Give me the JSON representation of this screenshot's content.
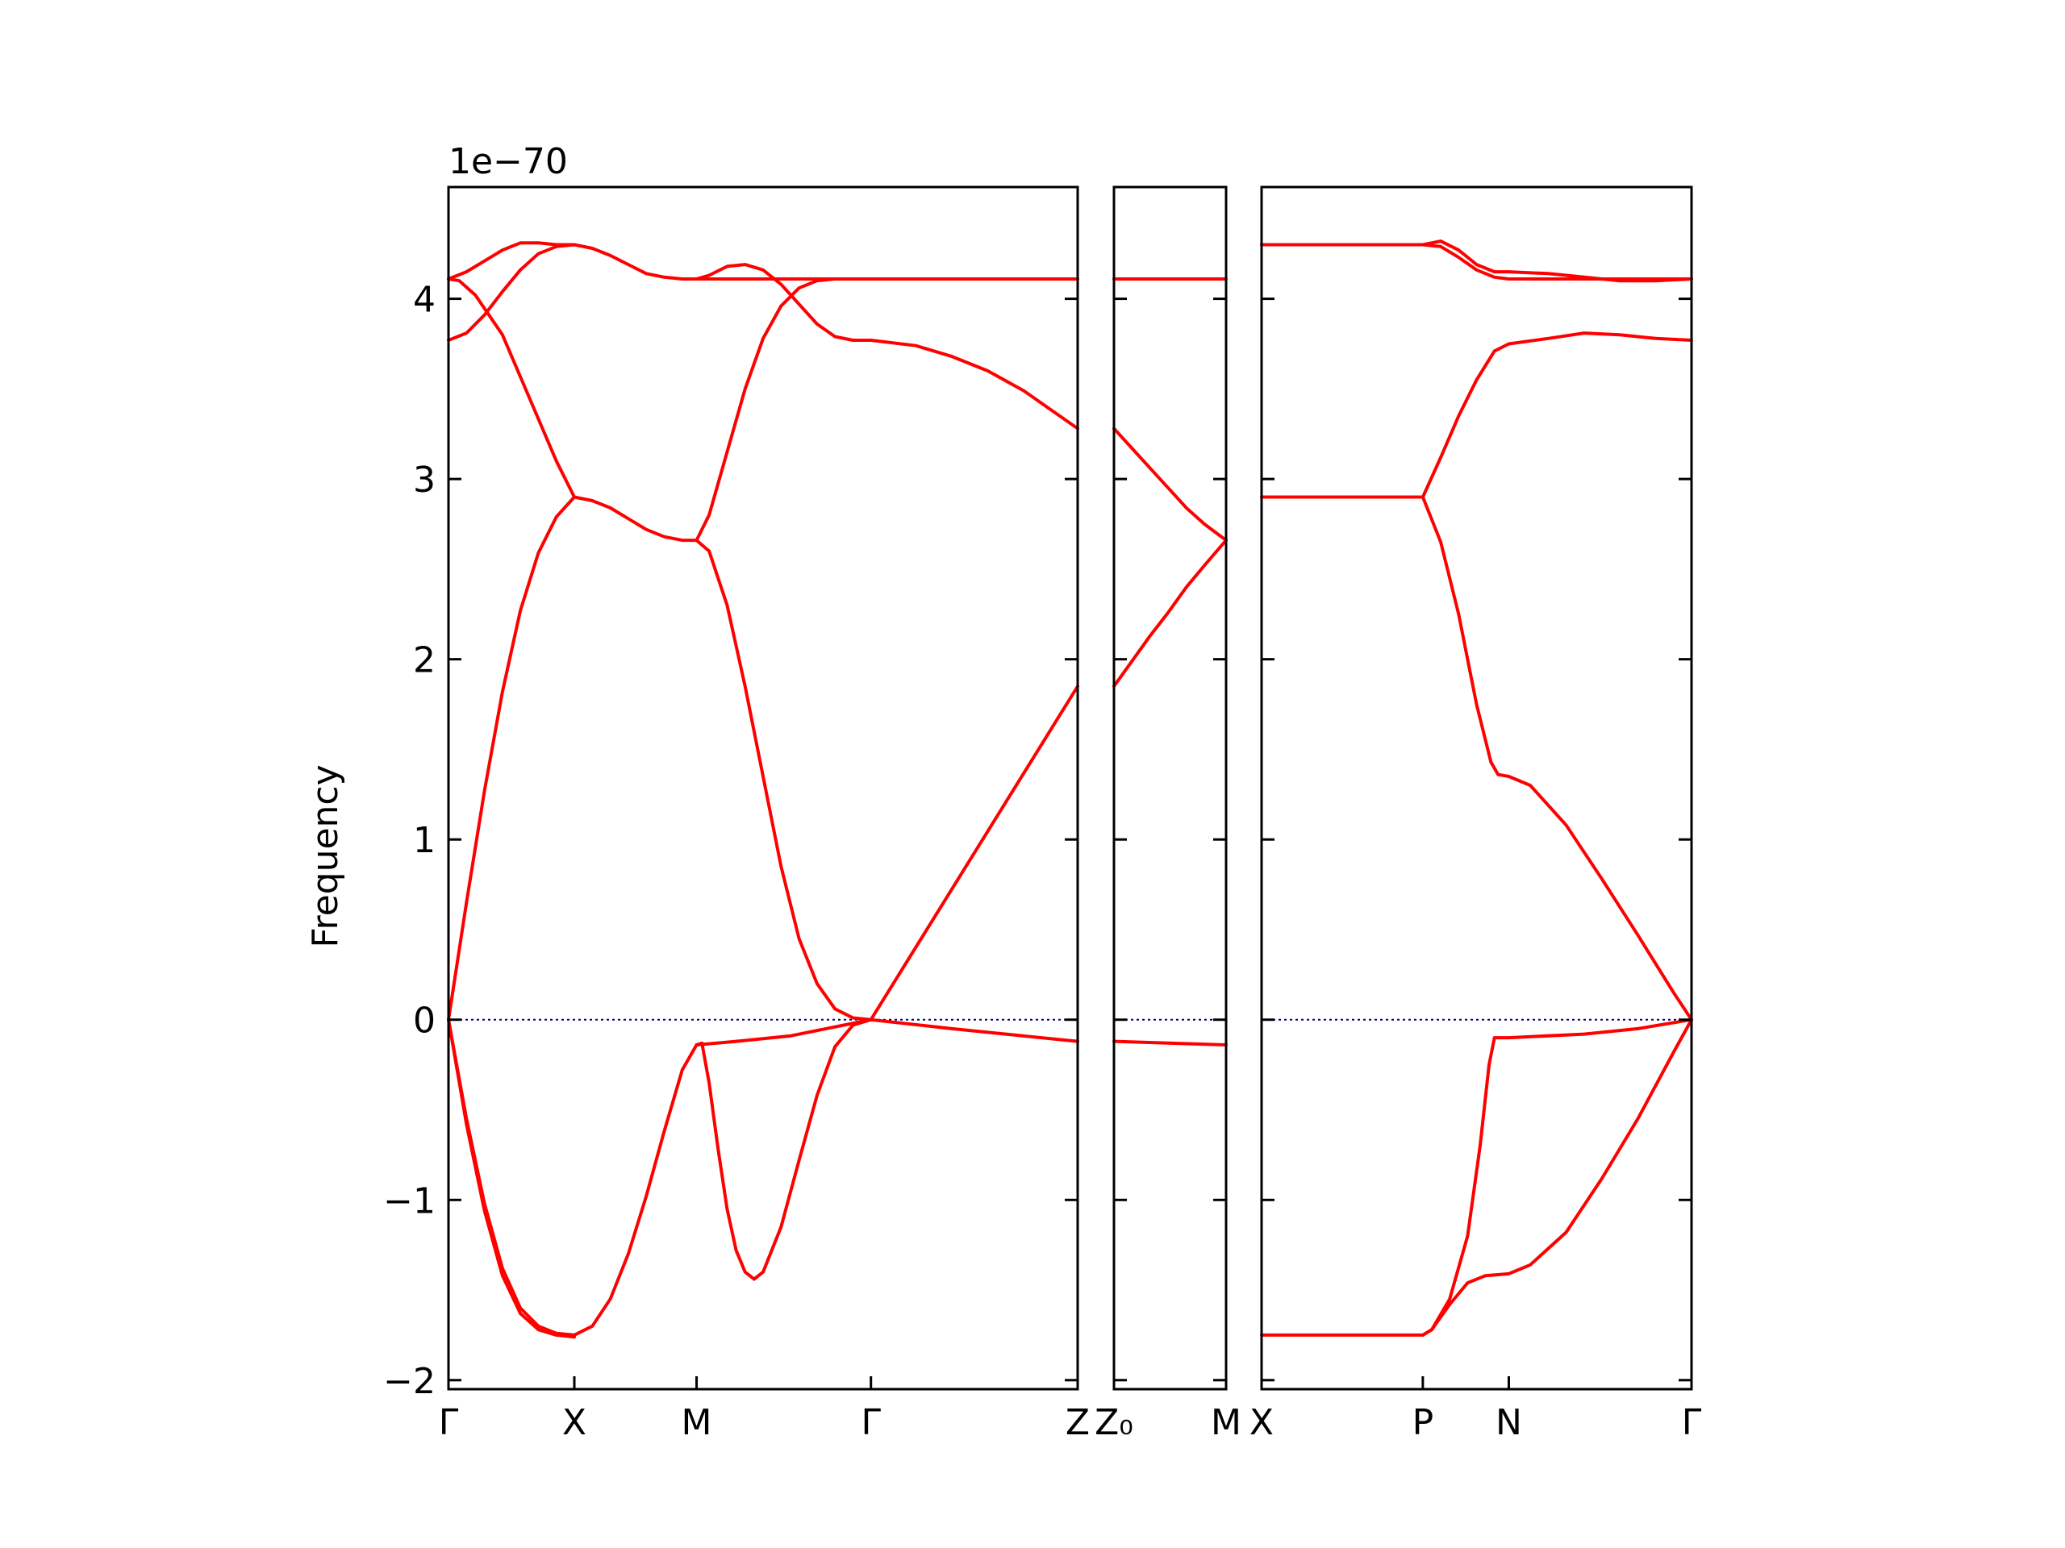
{
  "chart_data": {
    "type": "line",
    "ylabel": "Frequency",
    "y_offset_text": "1e−70",
    "ylim": [
      -2.05,
      4.62
    ],
    "y_ticks": [
      -2,
      -1,
      0,
      1,
      2,
      3,
      4
    ],
    "y_tick_labels": [
      "−2",
      "−1",
      "0",
      "1",
      "2",
      "3",
      "4"
    ],
    "line_color": "#ff0000",
    "zero_line_color": "#00008b",
    "panels": [
      {
        "xlim": [
          0,
          3.5
        ],
        "ticks": [
          {
            "x": 0,
            "label": "Γ"
          },
          {
            "x": 0.7,
            "label": "X"
          },
          {
            "x": 1.38,
            "label": "M"
          },
          {
            "x": 2.35,
            "label": "Γ"
          },
          {
            "x": 3.5,
            "label": "Z"
          }
        ],
        "bands": [
          [
            [
              0,
              4.11
            ],
            [
              0.06,
              4.1
            ],
            [
              0.15,
              4.02
            ],
            [
              0.3,
              3.8
            ],
            [
              0.45,
              3.45
            ],
            [
              0.6,
              3.1
            ],
            [
              0.7,
              2.9
            ],
            [
              0.8,
              2.88
            ],
            [
              0.9,
              2.84
            ],
            [
              1.0,
              2.78
            ],
            [
              1.1,
              2.72
            ],
            [
              1.2,
              2.68
            ],
            [
              1.3,
              2.66
            ],
            [
              1.38,
              2.66
            ]
          ],
          [
            [
              0,
              3.77
            ],
            [
              0.1,
              3.81
            ],
            [
              0.2,
              3.91
            ],
            [
              0.3,
              4.04
            ],
            [
              0.4,
              4.16
            ],
            [
              0.5,
              4.25
            ],
            [
              0.6,
              4.29
            ],
            [
              0.7,
              4.3
            ],
            [
              0.8,
              4.28
            ],
            [
              0.9,
              4.24
            ],
            [
              1.0,
              4.19
            ],
            [
              1.1,
              4.14
            ],
            [
              1.2,
              4.12
            ],
            [
              1.3,
              4.11
            ],
            [
              1.38,
              4.11
            ]
          ],
          [
            [
              0,
              4.11
            ],
            [
              0.1,
              4.15
            ],
            [
              0.2,
              4.21
            ],
            [
              0.3,
              4.27
            ],
            [
              0.4,
              4.31
            ],
            [
              0.5,
              4.31
            ],
            [
              0.6,
              4.3
            ],
            [
              0.7,
              4.3
            ]
          ],
          [
            [
              0,
              0
            ],
            [
              0.1,
              0.65
            ],
            [
              0.2,
              1.27
            ],
            [
              0.3,
              1.82
            ],
            [
              0.4,
              2.27
            ],
            [
              0.5,
              2.59
            ],
            [
              0.6,
              2.79
            ],
            [
              0.7,
              2.9
            ]
          ],
          [
            [
              0,
              0
            ],
            [
              0.1,
              -0.55
            ],
            [
              0.2,
              -1.02
            ],
            [
              0.3,
              -1.38
            ],
            [
              0.4,
              -1.6
            ],
            [
              0.5,
              -1.7
            ],
            [
              0.6,
              -1.74
            ],
            [
              0.7,
              -1.75
            ],
            [
              0.8,
              -1.7
            ],
            [
              0.9,
              -1.55
            ],
            [
              1.0,
              -1.3
            ],
            [
              1.1,
              -0.98
            ],
            [
              1.2,
              -0.62
            ],
            [
              1.3,
              -0.28
            ],
            [
              1.38,
              -0.14
            ]
          ],
          [
            [
              0,
              0
            ],
            [
              0.1,
              -0.58
            ],
            [
              0.2,
              -1.06
            ],
            [
              0.3,
              -1.42
            ],
            [
              0.4,
              -1.63
            ],
            [
              0.5,
              -1.72
            ],
            [
              0.6,
              -1.75
            ],
            [
              0.7,
              -1.76
            ]
          ],
          [
            [
              1.38,
              2.66
            ],
            [
              1.45,
              2.6
            ],
            [
              1.55,
              2.3
            ],
            [
              1.65,
              1.85
            ],
            [
              1.75,
              1.35
            ],
            [
              1.85,
              0.85
            ],
            [
              1.95,
              0.45
            ],
            [
              2.05,
              0.2
            ],
            [
              2.15,
              0.06
            ],
            [
              2.25,
              0.01
            ],
            [
              2.35,
              0
            ]
          ],
          [
            [
              1.38,
              2.66
            ],
            [
              1.45,
              2.8
            ],
            [
              1.55,
              3.15
            ],
            [
              1.65,
              3.5
            ],
            [
              1.75,
              3.78
            ],
            [
              1.85,
              3.96
            ],
            [
              1.95,
              4.06
            ],
            [
              2.05,
              4.1
            ],
            [
              2.15,
              4.11
            ],
            [
              2.35,
              4.11
            ],
            [
              3.5,
              4.11
            ]
          ],
          [
            [
              1.38,
              4.11
            ],
            [
              1.45,
              4.13
            ],
            [
              1.55,
              4.18
            ],
            [
              1.65,
              4.19
            ],
            [
              1.75,
              4.16
            ],
            [
              1.85,
              4.08
            ],
            [
              1.95,
              3.97
            ],
            [
              2.05,
              3.86
            ],
            [
              2.15,
              3.79
            ],
            [
              2.25,
              3.77
            ],
            [
              2.35,
              3.77
            ],
            [
              2.6,
              3.74
            ],
            [
              2.8,
              3.68
            ],
            [
              3.0,
              3.6
            ],
            [
              3.2,
              3.49
            ],
            [
              3.4,
              3.35
            ],
            [
              3.5,
              3.28
            ]
          ],
          [
            [
              1.38,
              4.11
            ],
            [
              1.6,
              4.11
            ],
            [
              1.8,
              4.11
            ],
            [
              2.0,
              4.11
            ],
            [
              2.2,
              4.11
            ],
            [
              2.35,
              4.11
            ]
          ],
          [
            [
              1.38,
              -0.14
            ],
            [
              1.41,
              -0.13
            ],
            [
              1.45,
              -0.35
            ],
            [
              1.5,
              -0.72
            ],
            [
              1.55,
              -1.05
            ],
            [
              1.6,
              -1.28
            ],
            [
              1.65,
              -1.4
            ],
            [
              1.7,
              -1.44
            ],
            [
              1.75,
              -1.4
            ],
            [
              1.85,
              -1.15
            ],
            [
              1.95,
              -0.78
            ],
            [
              2.05,
              -0.42
            ],
            [
              2.15,
              -0.15
            ],
            [
              2.25,
              -0.03
            ],
            [
              2.35,
              0
            ]
          ],
          [
            [
              1.38,
              -0.14
            ],
            [
              1.6,
              -0.12
            ],
            [
              1.9,
              -0.09
            ],
            [
              2.1,
              -0.05
            ],
            [
              2.35,
              0
            ]
          ],
          [
            [
              2.35,
              0
            ],
            [
              3.5,
              1.85
            ]
          ],
          [
            [
              2.35,
              0
            ],
            [
              2.8,
              -0.05
            ],
            [
              3.2,
              -0.09
            ],
            [
              3.5,
              -0.12
            ]
          ]
        ]
      },
      {
        "xlim": [
          0,
          0.62
        ],
        "ticks": [
          {
            "x": 0,
            "label": "Z₀"
          },
          {
            "x": 0.62,
            "label": "M"
          }
        ],
        "bands": [
          [
            [
              0,
              4.11
            ],
            [
              0.62,
              4.11
            ]
          ],
          [
            [
              0,
              3.28
            ],
            [
              0.1,
              3.17
            ],
            [
              0.2,
              3.06
            ],
            [
              0.3,
              2.95
            ],
            [
              0.4,
              2.84
            ],
            [
              0.5,
              2.75
            ],
            [
              0.62,
              2.66
            ]
          ],
          [
            [
              0,
              1.85
            ],
            [
              0.1,
              1.99
            ],
            [
              0.2,
              2.13
            ],
            [
              0.3,
              2.26
            ],
            [
              0.4,
              2.4
            ],
            [
              0.5,
              2.52
            ],
            [
              0.62,
              2.66
            ]
          ],
          [
            [
              0,
              -0.12
            ],
            [
              0.3,
              -0.13
            ],
            [
              0.62,
              -0.14
            ]
          ]
        ]
      },
      {
        "xlim": [
          0,
          2.4
        ],
        "ticks": [
          {
            "x": 0,
            "label": "X"
          },
          {
            "x": 0.9,
            "label": "P"
          },
          {
            "x": 1.38,
            "label": "N"
          },
          {
            "x": 2.4,
            "label": "Γ"
          }
        ],
        "bands": [
          [
            [
              0,
              4.3
            ],
            [
              0.9,
              4.3
            ],
            [
              1.0,
              4.29
            ],
            [
              1.1,
              4.23
            ],
            [
              1.2,
              4.16
            ],
            [
              1.3,
              4.12
            ],
            [
              1.38,
              4.11
            ],
            [
              2.4,
              4.11
            ]
          ],
          [
            [
              0,
              4.3
            ],
            [
              0.9,
              4.3
            ],
            [
              1.0,
              4.32
            ],
            [
              1.1,
              4.27
            ],
            [
              1.2,
              4.19
            ],
            [
              1.3,
              4.15
            ],
            [
              1.38,
              4.15
            ],
            [
              1.6,
              4.14
            ],
            [
              1.8,
              4.12
            ],
            [
              2.0,
              4.1
            ],
            [
              2.2,
              4.1
            ],
            [
              2.4,
              4.11
            ]
          ],
          [
            [
              0,
              2.9
            ],
            [
              0.9,
              2.9
            ]
          ],
          [
            [
              0,
              -1.75
            ],
            [
              0.9,
              -1.75
            ]
          ],
          [
            [
              0.9,
              2.9
            ],
            [
              1.0,
              3.12
            ],
            [
              1.1,
              3.35
            ],
            [
              1.2,
              3.55
            ],
            [
              1.3,
              3.71
            ],
            [
              1.38,
              3.75
            ],
            [
              1.6,
              3.78
            ],
            [
              1.8,
              3.81
            ],
            [
              2.0,
              3.8
            ],
            [
              2.2,
              3.78
            ],
            [
              2.4,
              3.77
            ]
          ],
          [
            [
              0.9,
              2.9
            ],
            [
              1.0,
              2.65
            ],
            [
              1.1,
              2.25
            ],
            [
              1.2,
              1.75
            ],
            [
              1.28,
              1.43
            ],
            [
              1.32,
              1.36
            ],
            [
              1.38,
              1.35
            ],
            [
              1.5,
              1.3
            ],
            [
              1.7,
              1.08
            ],
            [
              1.9,
              0.78
            ],
            [
              2.1,
              0.47
            ],
            [
              2.3,
              0.15
            ],
            [
              2.4,
              0
            ]
          ],
          [
            [
              0.9,
              -1.75
            ],
            [
              0.95,
              -1.72
            ],
            [
              1.05,
              -1.58
            ],
            [
              1.15,
              -1.46
            ],
            [
              1.25,
              -1.42
            ],
            [
              1.38,
              -1.41
            ],
            [
              1.5,
              -1.36
            ],
            [
              1.7,
              -1.18
            ],
            [
              1.9,
              -0.88
            ],
            [
              2.1,
              -0.55
            ],
            [
              2.3,
              -0.18
            ],
            [
              2.4,
              0
            ]
          ],
          [
            [
              0.9,
              -1.75
            ],
            [
              0.95,
              -1.72
            ],
            [
              1.05,
              -1.55
            ],
            [
              1.15,
              -1.2
            ],
            [
              1.22,
              -0.7
            ],
            [
              1.27,
              -0.25
            ],
            [
              1.3,
              -0.1
            ],
            [
              1.38,
              -0.1
            ],
            [
              1.8,
              -0.08
            ],
            [
              2.1,
              -0.05
            ],
            [
              2.4,
              0
            ]
          ]
        ]
      }
    ]
  }
}
